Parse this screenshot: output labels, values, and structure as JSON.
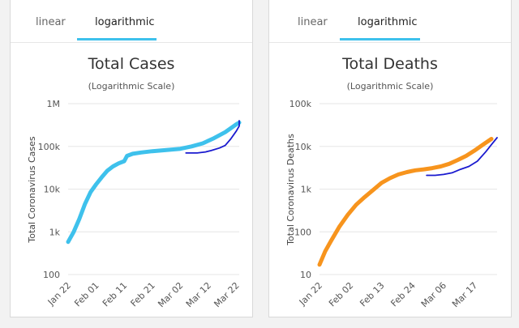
{
  "tabs": {
    "linear": "linear",
    "logarithmic": "logarithmic"
  },
  "colors": {
    "accent": "#3ec1ec",
    "cases_line": "#3ec1ec",
    "deaths_line": "#f7941d",
    "comparison_line": "#1a1acf"
  },
  "chart_data": [
    {
      "type": "line",
      "title": "Total Cases",
      "subtitle": "(Logarithmic Scale)",
      "ylabel": "Total Coronavirus Cases",
      "yscale": "log",
      "ylim": [
        100,
        1000000
      ],
      "y_ticks": [
        "100",
        "1k",
        "10k",
        "100k",
        "1M"
      ],
      "x_ticks": [
        "Jan 22",
        "Feb 01",
        "Feb 11",
        "Feb 21",
        "Mar 02",
        "Mar 12",
        "Mar 22"
      ],
      "grid": true,
      "series": [
        {
          "color": "#3ec1ec",
          "points": [
            [
              "Jan 22",
              580
            ],
            [
              "Jan 24",
              1000
            ],
            [
              "Jan 26",
              2000
            ],
            [
              "Jan 28",
              4500
            ],
            [
              "Jan 30",
              8500
            ],
            [
              "Feb 01",
              13000
            ],
            [
              "Feb 03",
              19000
            ],
            [
              "Feb 05",
              27000
            ],
            [
              "Feb 07",
              34000
            ],
            [
              "Feb 09",
              40000
            ],
            [
              "Feb 11",
              45000
            ],
            [
              "Feb 12",
              60000
            ],
            [
              "Feb 14",
              67000
            ],
            [
              "Feb 17",
              72000
            ],
            [
              "Feb 21",
              77000
            ],
            [
              "Feb 26",
              82000
            ],
            [
              "Mar 02",
              88000
            ],
            [
              "Mar 06",
              100000
            ],
            [
              "Mar 10",
              118000
            ],
            [
              "Mar 14",
              156000
            ],
            [
              "Mar 18",
              215000
            ],
            [
              "Mar 22",
              330000
            ],
            [
              "Mar 23",
              360000
            ]
          ]
        },
        {
          "color": "#1a1acf",
          "points": [
            [
              "Mar 04",
              70000
            ],
            [
              "Mar 08",
              70000
            ],
            [
              "Mar 11",
              74000
            ],
            [
              "Mar 13",
              80000
            ],
            [
              "Mar 16",
              92000
            ],
            [
              "Mar 18",
              105000
            ],
            [
              "Mar 20",
              150000
            ],
            [
              "Mar 22",
              230000
            ],
            [
              "Mar 23",
              300000
            ],
            [
              "Mar 23",
              400000
            ]
          ]
        }
      ]
    },
    {
      "type": "line",
      "title": "Total Deaths",
      "subtitle": "(Logarithmic Scale)",
      "ylabel": "Total Coronavirus Deaths",
      "yscale": "log",
      "ylim": [
        10,
        100000
      ],
      "y_ticks": [
        "10",
        "100",
        "1k",
        "10k",
        "100k"
      ],
      "x_ticks": [
        "Jan 22",
        "Feb 02",
        "Feb 13",
        "Feb 24",
        "Mar 06",
        "Mar 17"
      ],
      "grid": true,
      "series": [
        {
          "color": "#f7941d",
          "points": [
            [
              "Jan 22",
              17
            ],
            [
              "Jan 24",
              35
            ],
            [
              "Jan 26",
              60
            ],
            [
              "Jan 29",
              130
            ],
            [
              "Feb 01",
              250
            ],
            [
              "Feb 04",
              430
            ],
            [
              "Feb 07",
              650
            ],
            [
              "Feb 10",
              950
            ],
            [
              "Feb 13",
              1400
            ],
            [
              "Feb 16",
              1800
            ],
            [
              "Feb 19",
              2200
            ],
            [
              "Feb 22",
              2500
            ],
            [
              "Feb 25",
              2750
            ],
            [
              "Feb 28",
              2900
            ],
            [
              "Mar 02",
              3100
            ],
            [
              "Mar 05",
              3400
            ],
            [
              "Mar 08",
              3900
            ],
            [
              "Mar 11",
              4800
            ],
            [
              "Mar 14",
              6000
            ],
            [
              "Mar 17",
              8000
            ],
            [
              "Mar 20",
              11000
            ],
            [
              "Mar 23",
              15000
            ]
          ]
        },
        {
          "color": "#1a1acf",
          "points": [
            [
              "Feb 29",
              2100
            ],
            [
              "Mar 03",
              2100
            ],
            [
              "Mar 06",
              2200
            ],
            [
              "Mar 09",
              2400
            ],
            [
              "Mar 12",
              2900
            ],
            [
              "Mar 15",
              3400
            ],
            [
              "Mar 18",
              4500
            ],
            [
              "Mar 21",
              7500
            ],
            [
              "Mar 23",
              11000
            ],
            [
              "Mar 25",
              16000
            ]
          ]
        }
      ]
    }
  ]
}
